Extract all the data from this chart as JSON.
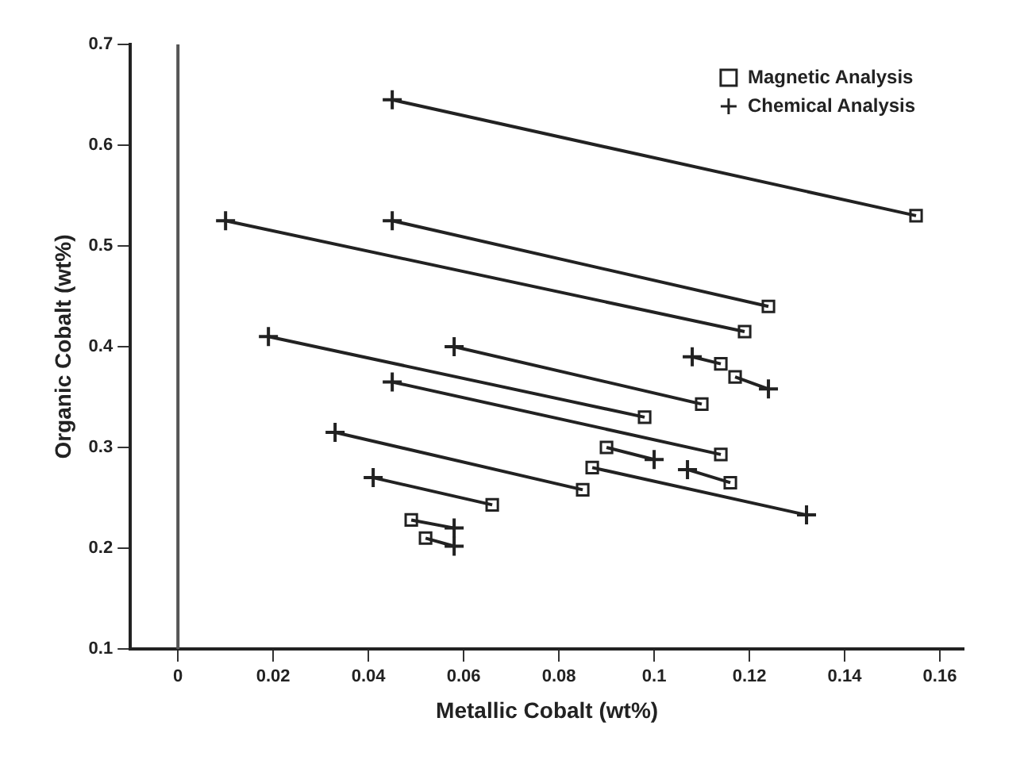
{
  "chart_data": {
    "type": "scatter",
    "xlabel": "Metallic Cobalt (wt%)",
    "ylabel": "Organic Cobalt (wt%)",
    "xlim": [
      -0.01,
      0.165
    ],
    "xticks": [
      0,
      0.02,
      0.04,
      0.06,
      0.08,
      0.1,
      0.12,
      0.14,
      0.16
    ],
    "ylim": [
      0.1,
      0.7
    ],
    "yticks": [
      0.1,
      0.2,
      0.3,
      0.4,
      0.5,
      0.6,
      0.7
    ],
    "grid": false,
    "legend": "top right",
    "ref_lines": [
      {
        "axis": "x",
        "value": 0,
        "color": "#555555"
      }
    ],
    "series": [
      {
        "type": "line",
        "marker": "none",
        "color": "#222222",
        "x": [
          0.045,
          0.155
        ],
        "values": [
          0.645,
          0.53
        ]
      },
      {
        "type": "line",
        "marker": "none",
        "color": "#222222",
        "x": [
          0.01,
          0.119
        ],
        "values": [
          0.525,
          0.415
        ]
      },
      {
        "type": "line",
        "marker": "none",
        "color": "#222222",
        "x": [
          0.045,
          0.124
        ],
        "values": [
          0.525,
          0.44
        ]
      },
      {
        "type": "line",
        "marker": "none",
        "color": "#222222",
        "x": [
          0.019,
          0.098
        ],
        "values": [
          0.41,
          0.33
        ]
      },
      {
        "type": "line",
        "marker": "none",
        "color": "#222222",
        "x": [
          0.058,
          0.11
        ],
        "values": [
          0.4,
          0.343
        ]
      },
      {
        "type": "line",
        "marker": "none",
        "color": "#222222",
        "x": [
          0.045,
          0.114
        ],
        "values": [
          0.365,
          0.293
        ]
      },
      {
        "type": "line",
        "marker": "none",
        "color": "#222222",
        "x": [
          0.033,
          0.085
        ],
        "values": [
          0.315,
          0.258
        ]
      },
      {
        "type": "line",
        "marker": "none",
        "color": "#222222",
        "x": [
          0.041,
          0.066
        ],
        "values": [
          0.27,
          0.243
        ]
      },
      {
        "type": "line",
        "marker": "none",
        "color": "#222222",
        "x": [
          0.132,
          0.087
        ],
        "values": [
          0.233,
          0.28
        ]
      },
      {
        "type": "line",
        "marker": "none",
        "color": "#222222",
        "x": [
          0.1,
          0.09
        ],
        "values": [
          0.288,
          0.3
        ]
      },
      {
        "type": "line",
        "marker": "none",
        "color": "#222222",
        "x": [
          0.107,
          0.116
        ],
        "values": [
          0.278,
          0.265
        ]
      },
      {
        "type": "line",
        "marker": "none",
        "color": "#222222",
        "x": [
          0.108,
          0.114
        ],
        "values": [
          0.39,
          0.383
        ]
      },
      {
        "type": "line",
        "marker": "none",
        "color": "#222222",
        "x": [
          0.124,
          0.117
        ],
        "values": [
          0.358,
          0.37
        ]
      },
      {
        "type": "line",
        "marker": "none",
        "color": "#222222",
        "x": [
          0.058,
          0.049
        ],
        "values": [
          0.22,
          0.228
        ]
      },
      {
        "type": "line",
        "marker": "none",
        "color": "#222222",
        "x": [
          0.058,
          0.052
        ],
        "values": [
          0.202,
          0.21
        ]
      },
      {
        "name": "Magnetic Analysis",
        "marker": "square",
        "color": "#222222",
        "x": [
          0.155,
          0.119,
          0.124,
          0.098,
          0.11,
          0.114,
          0.085,
          0.066,
          0.087,
          0.09,
          0.116,
          0.114,
          0.117,
          0.049,
          0.052
        ],
        "values": [
          0.53,
          0.415,
          0.44,
          0.33,
          0.343,
          0.293,
          0.258,
          0.243,
          0.28,
          0.3,
          0.265,
          0.383,
          0.37,
          0.228,
          0.21
        ]
      },
      {
        "name": "Chemical Analysis",
        "marker": "cross",
        "color": "#222222",
        "x": [
          0.045,
          0.01,
          0.045,
          0.019,
          0.058,
          0.045,
          0.033,
          0.041,
          0.132,
          0.1,
          0.107,
          0.108,
          0.124,
          0.058,
          0.058
        ],
        "values": [
          0.645,
          0.525,
          0.525,
          0.41,
          0.4,
          0.365,
          0.315,
          0.27,
          0.233,
          0.288,
          0.278,
          0.39,
          0.358,
          0.22,
          0.202
        ]
      }
    ]
  }
}
